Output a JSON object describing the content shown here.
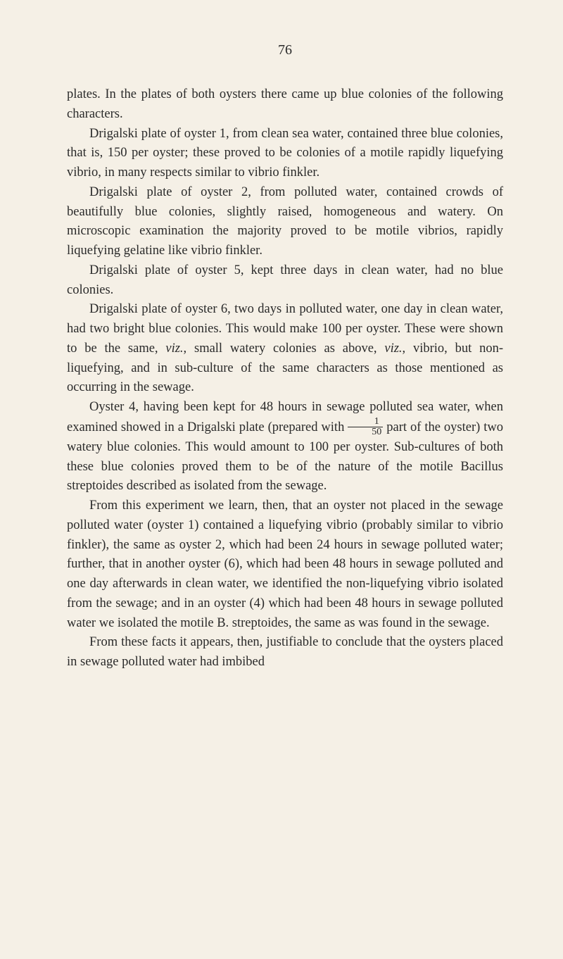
{
  "pageNumber": "76",
  "paragraphs": [
    {
      "indent": false,
      "text": "plates. In the plates of both oysters there came up blue colonies of the following characters."
    },
    {
      "indent": true,
      "text": "Drigalski plate of oyster 1, from clean sea water, con­tained three blue colonies, that is, 150 per oyster; these proved to be colonies of a motile rapidly liquefying vibrio, in many respects similar to vibrio finkler."
    },
    {
      "indent": true,
      "text": "Drigalski plate of oyster 2, from polluted water, contained crowds of beautifully blue colonies, slightly raised, homo­geneous and watery. On microscopic examination the majority proved to be motile vibrios, rapidly liquefying gelatine like vibrio finkler."
    },
    {
      "indent": true,
      "text": "Drigalski plate of oyster 5, kept three days in clean water, had no blue colonies."
    },
    {
      "indent": true,
      "html": "Drigalski plate of oyster 6, two days in polluted water, one day in clean water, had two bright blue colonies. This would make 100 per oyster. These were shown to be the same, <em>viz.</em>, small watery colonies as above, <em>viz.</em>, vibrio, but non-liquefying, and in sub-culture of the same characters as those mentioned as occurring in the sewage."
    },
    {
      "indent": true,
      "html": "Oyster 4, having been kept for 48 hours in sewage polluted sea water, when examined showed in a Drigalski plate (prepared with <span class=\"fraction\"><span class=\"num\">1</span><span class=\"den\">50</span></span> part of the oyster) two watery blue colonies. This would amount to 100 per oyster. Sub-cultures of both these blue colonies proved them to be of the nature of the motile Bacillus streptoides described as isolated from the sewage."
    },
    {
      "indent": true,
      "text": "From this experiment we learn, then, that an oyster not placed in the sewage polluted water (oyster 1) contained a liquefying vibrio (probably similar to vibrio finkler), the same as oyster 2, which had been 24 hours in sewage polluted water; further, that in another oyster (6), which had been 48 hours in sewage polluted and one day afterwards in clean water, we identified the non-liquefying vibrio isolated from the sewage; and in an oyster (4) which had been 48 hours in sewage polluted water we isolated the motile B. streptoides, the same as was found in the sewage."
    },
    {
      "indent": true,
      "text": "From these facts it appears, then, justifiable to conclude that the oysters placed in sewage polluted water had imbibed"
    }
  ]
}
